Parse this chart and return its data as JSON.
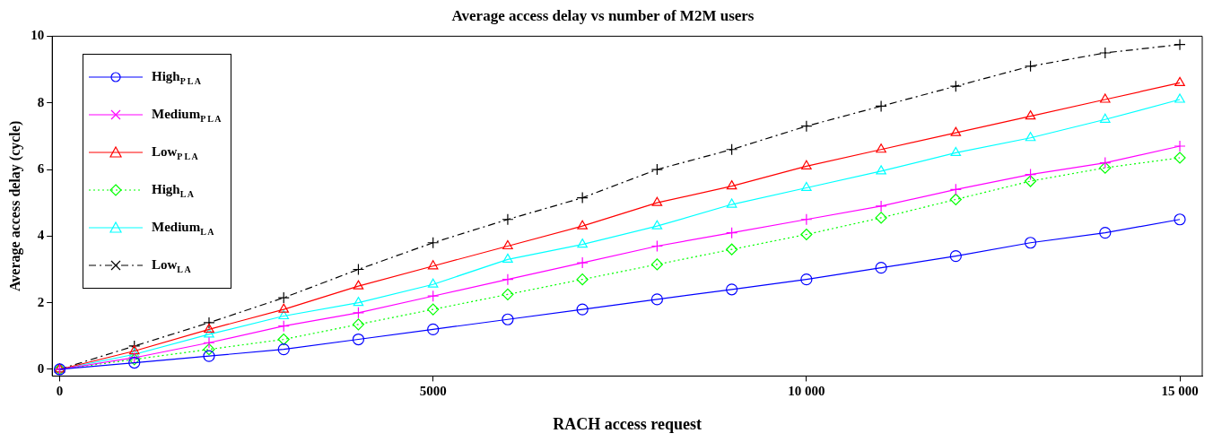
{
  "chart_data": {
    "type": "line",
    "title": "Average access delay vs number of M2M users",
    "xlabel": "RACH access request",
    "ylabel": "Average access delay (cycle)",
    "x": [
      0,
      1000,
      2000,
      3000,
      4000,
      5000,
      6000,
      7000,
      8000,
      9000,
      10000,
      11000,
      12000,
      13000,
      14000,
      15000
    ],
    "series": [
      {
        "name": "High$_{P L A}$",
        "color": "#0000ff",
        "marker": "circle",
        "line_style": "solid",
        "values": [
          0,
          0.2,
          0.4,
          0.6,
          0.9,
          1.2,
          1.5,
          1.8,
          2.1,
          2.4,
          2.7,
          3.05,
          3.4,
          3.8,
          4.1,
          4.5
        ]
      },
      {
        "name": "Medium$_{P L A}$",
        "color": "#ff00ff",
        "marker": "cross",
        "line_style": "solid",
        "values": [
          0,
          0.35,
          0.8,
          1.3,
          1.7,
          2.2,
          2.7,
          3.2,
          3.7,
          4.1,
          4.5,
          4.9,
          5.4,
          5.85,
          6.2,
          6.7
        ]
      },
      {
        "name": "Low$_{P L A}$",
        "color": "#ff0000",
        "marker": "triangle",
        "line_style": "solid",
        "values": [
          0,
          0.55,
          1.2,
          1.8,
          2.5,
          3.1,
          3.7,
          4.3,
          5.0,
          5.5,
          6.1,
          6.6,
          7.1,
          7.6,
          8.1,
          8.6
        ]
      },
      {
        "name": "High$_{L A}$",
        "color": "#00ff00",
        "marker": "diamond",
        "line_style": "dotted",
        "values": [
          0,
          0.3,
          0.6,
          0.9,
          1.35,
          1.8,
          2.25,
          2.7,
          3.15,
          3.6,
          4.05,
          4.55,
          5.1,
          5.65,
          6.05,
          6.35
        ]
      },
      {
        "name": "Medium$_{L A}$",
        "color": "#00ffff",
        "marker": "triangle",
        "line_style": "solid",
        "values": [
          0,
          0.45,
          1.05,
          1.6,
          2.0,
          2.55,
          3.3,
          3.75,
          4.3,
          4.95,
          5.45,
          5.95,
          6.5,
          6.95,
          7.5,
          8.1
        ]
      },
      {
        "name": "Low$_{L A}$",
        "color": "#000000",
        "marker": "cross",
        "line_style": "dashed",
        "values": [
          0,
          0.7,
          1.4,
          2.15,
          3.0,
          3.8,
          4.5,
          5.15,
          6.0,
          6.6,
          7.3,
          7.9,
          8.5,
          9.1,
          9.5,
          9.75
        ]
      }
    ],
    "xlim": [
      -100,
      15300
    ],
    "xticks": [
      0,
      5000,
      {
        "value": 10000,
        "label": "10 000"
      },
      {
        "value": 15000,
        "label": "15 000"
      }
    ],
    "ylim": [
      -0.2,
      10
    ],
    "yticks": [
      0,
      2,
      4,
      6,
      8,
      10
    ],
    "grid": false,
    "legend": "top left"
  }
}
